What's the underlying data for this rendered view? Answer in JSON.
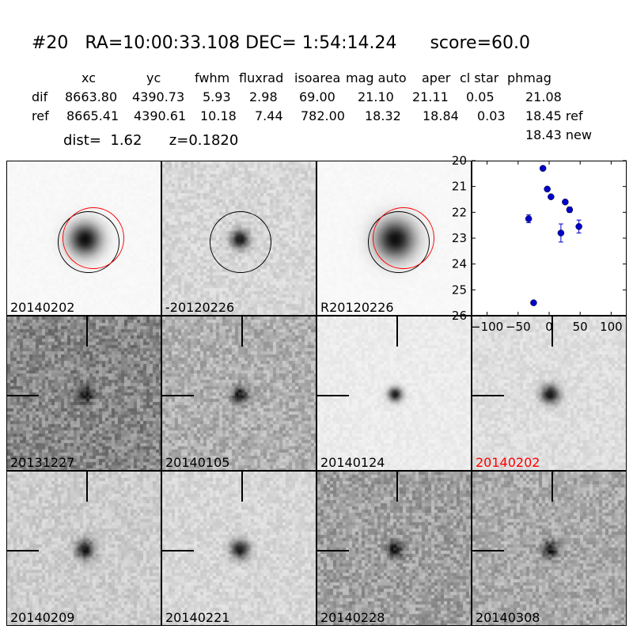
{
  "header": {
    "title": "#20   RA=10:00:33.108 DEC= 1:54:14.24      score=60.0"
  },
  "table": {
    "columns": [
      "xc",
      "yc",
      "fwhm",
      "fluxrad",
      "isoarea",
      "mag auto",
      "aper",
      "cl star",
      "phmag"
    ],
    "rows": [
      {
        "label": "dif",
        "values": [
          "8663.80",
          "4390.73",
          "5.93",
          "2.98",
          "69.00",
          "21.10",
          "21.11",
          "0.05",
          "21.08"
        ]
      },
      {
        "label": "ref",
        "values": [
          "8665.41",
          "4390.61",
          "10.18",
          "7.44",
          "782.00",
          "18.32",
          "18.84",
          "0.03",
          "18.45 ref"
        ]
      }
    ],
    "extra_phmag": "18.43 new"
  },
  "summary": {
    "text": "dist=  1.62      z=0.1820"
  },
  "stamps_top": [
    {
      "label": "20140202",
      "red": false,
      "rings": [
        "black",
        "red"
      ],
      "bg": 248,
      "amp": 235,
      "sigma": 14,
      "noise": 2
    },
    {
      "label": "-20120226",
      "red": false,
      "rings": [
        "black"
      ],
      "bg": 215,
      "amp": 195,
      "sigma": 8,
      "noise": 16
    },
    {
      "label": "R20120226",
      "red": false,
      "rings": [
        "black",
        "red"
      ],
      "bg": 248,
      "amp": 235,
      "sigma": 17,
      "noise": 2
    }
  ],
  "stamps_grid": [
    {
      "label": "20131227",
      "red": false,
      "bg": 135,
      "amp": 120,
      "sigma": 7,
      "noise": 38
    },
    {
      "label": "20140105",
      "red": false,
      "bg": 175,
      "amp": 150,
      "sigma": 7,
      "noise": 30
    },
    {
      "label": "20140124",
      "red": false,
      "bg": 236,
      "amp": 215,
      "sigma": 6,
      "noise": 7
    },
    {
      "label": "20140202",
      "red": true,
      "bg": 222,
      "amp": 205,
      "sigma": 8,
      "noise": 12
    },
    {
      "label": "20140209",
      "red": false,
      "bg": 205,
      "amp": 190,
      "sigma": 8,
      "noise": 18
    },
    {
      "label": "20140221",
      "red": false,
      "bg": 215,
      "amp": 195,
      "sigma": 8,
      "noise": 15
    },
    {
      "label": "20140228",
      "red": false,
      "bg": 160,
      "amp": 135,
      "sigma": 7,
      "noise": 34
    },
    {
      "label": "20140308",
      "red": false,
      "bg": 170,
      "amp": 150,
      "sigma": 7,
      "noise": 30
    }
  ],
  "chart_data": {
    "type": "scatter",
    "title": "",
    "xlabel": "",
    "ylabel": "",
    "xlim": [
      -125,
      125
    ],
    "ylim": [
      26,
      20
    ],
    "xticks": [
      -100,
      -50,
      0,
      50,
      100
    ],
    "yticks": [
      20,
      21,
      22,
      23,
      24,
      25,
      26
    ],
    "marker_color": "#0000cc",
    "points": [
      {
        "x": -33,
        "y": 22.25,
        "err": 0.15
      },
      {
        "x": -25,
        "y": 25.5,
        "err": 0.05
      },
      {
        "x": -10,
        "y": 20.3,
        "err": 0.05
      },
      {
        "x": -3,
        "y": 21.1,
        "err": 0.05
      },
      {
        "x": 3,
        "y": 21.4,
        "err": 0.05
      },
      {
        "x": 19,
        "y": 22.8,
        "err": 0.35
      },
      {
        "x": 26,
        "y": 21.6,
        "err": 0.05
      },
      {
        "x": 33,
        "y": 21.9,
        "err": 0.1
      },
      {
        "x": 48,
        "y": 22.55,
        "err": 0.25
      }
    ]
  }
}
